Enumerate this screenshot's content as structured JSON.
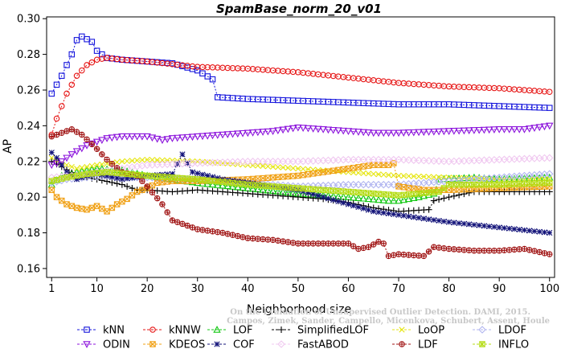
{
  "chart_data": {
    "type": "line",
    "title": "SpamBase_norm_20_v01",
    "xlabel": "Neighborhood size",
    "ylabel": "AP",
    "xlim": [
      0,
      101
    ],
    "ylim": [
      0.155,
      0.301
    ],
    "xticks": [
      1,
      10,
      20,
      30,
      40,
      50,
      60,
      70,
      80,
      90,
      100
    ],
    "yticks": [
      0.16,
      0.18,
      0.2,
      0.22,
      0.24,
      0.26,
      0.28,
      0.3
    ],
    "ytick_labels": [
      "0.16",
      "0.18",
      "0.20",
      "0.22",
      "0.24",
      "0.26",
      "0.28",
      "0.30"
    ],
    "grid": false,
    "legend_position": "bottom",
    "watermark_lines": [
      "Campos, Zimek, Sander, Campello, Micenkova, Schubert, Assent, Houle",
      "On the Evaluation of Unsupervised Outlier Detection. DAMI, 2015."
    ],
    "series": [
      {
        "name": "kNN",
        "color": "#1414dc",
        "marker": "square",
        "points": [
          [
            1,
            0.258
          ],
          [
            3,
            0.268
          ],
          [
            5,
            0.28
          ],
          [
            6,
            0.288
          ],
          [
            7,
            0.29
          ],
          [
            9,
            0.287
          ],
          [
            10,
            0.282
          ],
          [
            12,
            0.278
          ],
          [
            15,
            0.277
          ],
          [
            20,
            0.276
          ],
          [
            25,
            0.275
          ],
          [
            30,
            0.271
          ],
          [
            33,
            0.266
          ],
          [
            34,
            0.256
          ],
          [
            40,
            0.255
          ],
          [
            50,
            0.254
          ],
          [
            60,
            0.253
          ],
          [
            70,
            0.252
          ],
          [
            80,
            0.252
          ],
          [
            90,
            0.251
          ],
          [
            100,
            0.25
          ]
        ]
      },
      {
        "name": "kNNW",
        "color": "#e61414",
        "marker": "circle",
        "points": [
          [
            1,
            0.235
          ],
          [
            2,
            0.244
          ],
          [
            4,
            0.258
          ],
          [
            6,
            0.268
          ],
          [
            8,
            0.274
          ],
          [
            10,
            0.277
          ],
          [
            12,
            0.278
          ],
          [
            15,
            0.277
          ],
          [
            20,
            0.276
          ],
          [
            30,
            0.273
          ],
          [
            40,
            0.272
          ],
          [
            50,
            0.27
          ],
          [
            60,
            0.267
          ],
          [
            70,
            0.264
          ],
          [
            80,
            0.262
          ],
          [
            90,
            0.261
          ],
          [
            100,
            0.259
          ]
        ]
      },
      {
        "name": "LOF",
        "color": "#14c814",
        "marker": "triangle-up",
        "points": [
          [
            1,
            0.207
          ],
          [
            3,
            0.212
          ],
          [
            6,
            0.214
          ],
          [
            10,
            0.216
          ],
          [
            15,
            0.215
          ],
          [
            20,
            0.212
          ],
          [
            25,
            0.21
          ],
          [
            30,
            0.208
          ],
          [
            40,
            0.205
          ],
          [
            50,
            0.202
          ],
          [
            60,
            0.2
          ],
          [
            68,
            0.198
          ],
          [
            70,
            0.198
          ],
          [
            74,
            0.2
          ],
          [
            77,
            0.202
          ],
          [
            78,
            0.21
          ],
          [
            85,
            0.211
          ],
          [
            90,
            0.21
          ],
          [
            100,
            0.211
          ]
        ]
      },
      {
        "name": "SimplifiedLOF",
        "color": "#000000",
        "marker": "plus",
        "points": [
          [
            1,
            0.22
          ],
          [
            3,
            0.217
          ],
          [
            6,
            0.212
          ],
          [
            10,
            0.21
          ],
          [
            15,
            0.207
          ],
          [
            18,
            0.204
          ],
          [
            20,
            0.204
          ],
          [
            25,
            0.203
          ],
          [
            30,
            0.204
          ],
          [
            40,
            0.202
          ],
          [
            50,
            0.2
          ],
          [
            55,
            0.199
          ],
          [
            60,
            0.197
          ],
          [
            65,
            0.194
          ],
          [
            70,
            0.192
          ],
          [
            76,
            0.193
          ],
          [
            77,
            0.198
          ],
          [
            80,
            0.2
          ],
          [
            85,
            0.203
          ],
          [
            90,
            0.203
          ],
          [
            100,
            0.203
          ]
        ]
      },
      {
        "name": "LoOP",
        "color": "#e6e614",
        "marker": "x",
        "points": [
          [
            1,
            0.222
          ],
          [
            3,
            0.219
          ],
          [
            6,
            0.216
          ],
          [
            10,
            0.218
          ],
          [
            15,
            0.22
          ],
          [
            20,
            0.221
          ],
          [
            30,
            0.22
          ],
          [
            40,
            0.218
          ],
          [
            50,
            0.216
          ],
          [
            60,
            0.214
          ],
          [
            70,
            0.212
          ],
          [
            80,
            0.211
          ],
          [
            90,
            0.21
          ],
          [
            100,
            0.21
          ]
        ]
      },
      {
        "name": "LDOF",
        "color": "#b0b4f0",
        "marker": "diamond",
        "points": [
          [
            1,
            0.208
          ],
          [
            4,
            0.21
          ],
          [
            8,
            0.211
          ],
          [
            12,
            0.212
          ],
          [
            16,
            0.211
          ],
          [
            20,
            0.211
          ],
          [
            30,
            0.21
          ],
          [
            40,
            0.208
          ],
          [
            50,
            0.206
          ],
          [
            60,
            0.207
          ],
          [
            70,
            0.207
          ],
          [
            80,
            0.209
          ],
          [
            90,
            0.211
          ],
          [
            100,
            0.213
          ]
        ]
      },
      {
        "name": "ODIN",
        "color": "#8c14dc",
        "marker": "triangle-down",
        "points": [
          [
            1,
            0.218
          ],
          [
            3,
            0.22
          ],
          [
            5,
            0.224
          ],
          [
            8,
            0.229
          ],
          [
            10,
            0.231
          ],
          [
            12,
            0.233
          ],
          [
            15,
            0.234
          ],
          [
            18,
            0.234
          ],
          [
            20,
            0.234
          ],
          [
            23,
            0.232
          ],
          [
            25,
            0.233
          ],
          [
            30,
            0.234
          ],
          [
            40,
            0.236
          ],
          [
            45,
            0.237
          ],
          [
            50,
            0.239
          ],
          [
            55,
            0.238
          ],
          [
            60,
            0.237
          ],
          [
            65,
            0.236
          ],
          [
            70,
            0.236
          ],
          [
            80,
            0.237
          ],
          [
            90,
            0.238
          ],
          [
            95,
            0.238
          ],
          [
            100,
            0.24
          ]
        ]
      },
      {
        "name": "KDEOS",
        "color": "#f0a014",
        "marker": "square-x",
        "points": [
          [
            1,
            0.204
          ],
          [
            2,
            0.2
          ],
          [
            4,
            0.196
          ],
          [
            6,
            0.194
          ],
          [
            8,
            0.193
          ],
          [
            10,
            0.195
          ],
          [
            12,
            0.192
          ],
          [
            14,
            0.196
          ],
          [
            16,
            0.199
          ],
          [
            18,
            0.203
          ],
          [
            20,
            0.205
          ],
          [
            22,
            0.208
          ],
          [
            25,
            0.209
          ],
          [
            30,
            0.209
          ],
          [
            40,
            0.21
          ],
          [
            50,
            0.212
          ],
          [
            60,
            0.216
          ],
          [
            65,
            0.218
          ],
          [
            68,
            0.218
          ],
          [
            69,
            0.219
          ],
          [
            70,
            0.206
          ],
          [
            75,
            0.204
          ],
          [
            80,
            0.204
          ],
          [
            90,
            0.205
          ],
          [
            100,
            0.206
          ]
        ]
      },
      {
        "name": "COF",
        "color": "#14147a",
        "marker": "asterisk",
        "points": [
          [
            1,
            0.225
          ],
          [
            2,
            0.222
          ],
          [
            4,
            0.214
          ],
          [
            6,
            0.21
          ],
          [
            8,
            0.212
          ],
          [
            10,
            0.213
          ],
          [
            15,
            0.21
          ],
          [
            20,
            0.212
          ],
          [
            25,
            0.213
          ],
          [
            27,
            0.224
          ],
          [
            29,
            0.214
          ],
          [
            35,
            0.21
          ],
          [
            40,
            0.208
          ],
          [
            50,
            0.204
          ],
          [
            60,
            0.196
          ],
          [
            65,
            0.192
          ],
          [
            70,
            0.19
          ],
          [
            75,
            0.188
          ],
          [
            80,
            0.186
          ],
          [
            90,
            0.183
          ],
          [
            100,
            0.18
          ]
        ]
      },
      {
        "name": "FastABOD",
        "color": "#f0c8f0",
        "marker": "diamond",
        "points": [
          [
            1,
            0.211
          ],
          [
            5,
            0.212
          ],
          [
            10,
            0.214
          ],
          [
            15,
            0.216
          ],
          [
            20,
            0.218
          ],
          [
            30,
            0.219
          ],
          [
            40,
            0.22
          ],
          [
            50,
            0.22
          ],
          [
            60,
            0.221
          ],
          [
            70,
            0.221
          ],
          [
            80,
            0.22
          ],
          [
            90,
            0.221
          ],
          [
            100,
            0.222
          ]
        ]
      },
      {
        "name": "LDF",
        "color": "#a01414",
        "marker": "circle-plus",
        "points": [
          [
            1,
            0.234
          ],
          [
            3,
            0.236
          ],
          [
            5,
            0.238
          ],
          [
            7,
            0.235
          ],
          [
            10,
            0.227
          ],
          [
            12,
            0.221
          ],
          [
            15,
            0.214
          ],
          [
            18,
            0.212
          ],
          [
            20,
            0.206
          ],
          [
            23,
            0.196
          ],
          [
            25,
            0.187
          ],
          [
            28,
            0.184
          ],
          [
            30,
            0.182
          ],
          [
            35,
            0.18
          ],
          [
            40,
            0.177
          ],
          [
            45,
            0.176
          ],
          [
            50,
            0.174
          ],
          [
            55,
            0.174
          ],
          [
            60,
            0.174
          ],
          [
            62,
            0.171
          ],
          [
            64,
            0.172
          ],
          [
            66,
            0.175
          ],
          [
            67,
            0.174
          ],
          [
            68,
            0.167
          ],
          [
            70,
            0.168
          ],
          [
            75,
            0.167
          ],
          [
            77,
            0.172
          ],
          [
            80,
            0.171
          ],
          [
            85,
            0.17
          ],
          [
            90,
            0.17
          ],
          [
            95,
            0.171
          ],
          [
            100,
            0.168
          ]
        ]
      },
      {
        "name": "INFLO",
        "color": "#b4dc14",
        "marker": "star-box",
        "points": [
          [
            1,
            0.209
          ],
          [
            4,
            0.211
          ],
          [
            8,
            0.213
          ],
          [
            12,
            0.214
          ],
          [
            16,
            0.213
          ],
          [
            20,
            0.212
          ],
          [
            30,
            0.21
          ],
          [
            40,
            0.207
          ],
          [
            50,
            0.205
          ],
          [
            60,
            0.203
          ],
          [
            70,
            0.201
          ],
          [
            78,
            0.203
          ],
          [
            80,
            0.207
          ],
          [
            90,
            0.207
          ],
          [
            100,
            0.208
          ]
        ]
      }
    ]
  }
}
